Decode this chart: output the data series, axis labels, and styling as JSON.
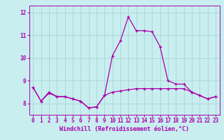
{
  "title": "",
  "xlabel": "Windchill (Refroidissement éolien,°C)",
  "ylabel": "",
  "background_color": "#c8eef0",
  "grid_color": "#b0d8d8",
  "line_color": "#aa00aa",
  "hours": [
    0,
    1,
    2,
    3,
    4,
    5,
    6,
    7,
    8,
    9,
    10,
    11,
    12,
    13,
    14,
    15,
    16,
    17,
    18,
    19,
    20,
    21,
    22,
    23
  ],
  "temp_line": [
    8.7,
    8.1,
    8.5,
    8.3,
    8.3,
    8.2,
    8.1,
    7.8,
    7.85,
    8.35,
    10.1,
    10.75,
    11.8,
    11.2,
    11.2,
    11.15,
    10.5,
    9.0,
    8.85,
    8.85,
    8.5,
    8.35,
    8.2,
    8.3
  ],
  "wind_line": [
    8.7,
    8.1,
    8.45,
    8.3,
    8.3,
    8.2,
    8.1,
    7.8,
    7.85,
    8.35,
    8.5,
    8.55,
    8.6,
    8.65,
    8.65,
    8.65,
    8.65,
    8.65,
    8.65,
    8.65,
    8.5,
    8.35,
    8.2,
    8.3
  ],
  "ylim": [
    7.5,
    12.3
  ],
  "xlim": [
    -0.5,
    23.5
  ],
  "yticks": [
    8,
    9,
    10,
    11,
    12
  ],
  "xticks": [
    0,
    1,
    2,
    3,
    4,
    5,
    6,
    7,
    8,
    9,
    10,
    11,
    12,
    13,
    14,
    15,
    16,
    17,
    18,
    19,
    20,
    21,
    22,
    23
  ],
  "tick_fontsize": 5.5,
  "xlabel_fontsize": 6.0
}
